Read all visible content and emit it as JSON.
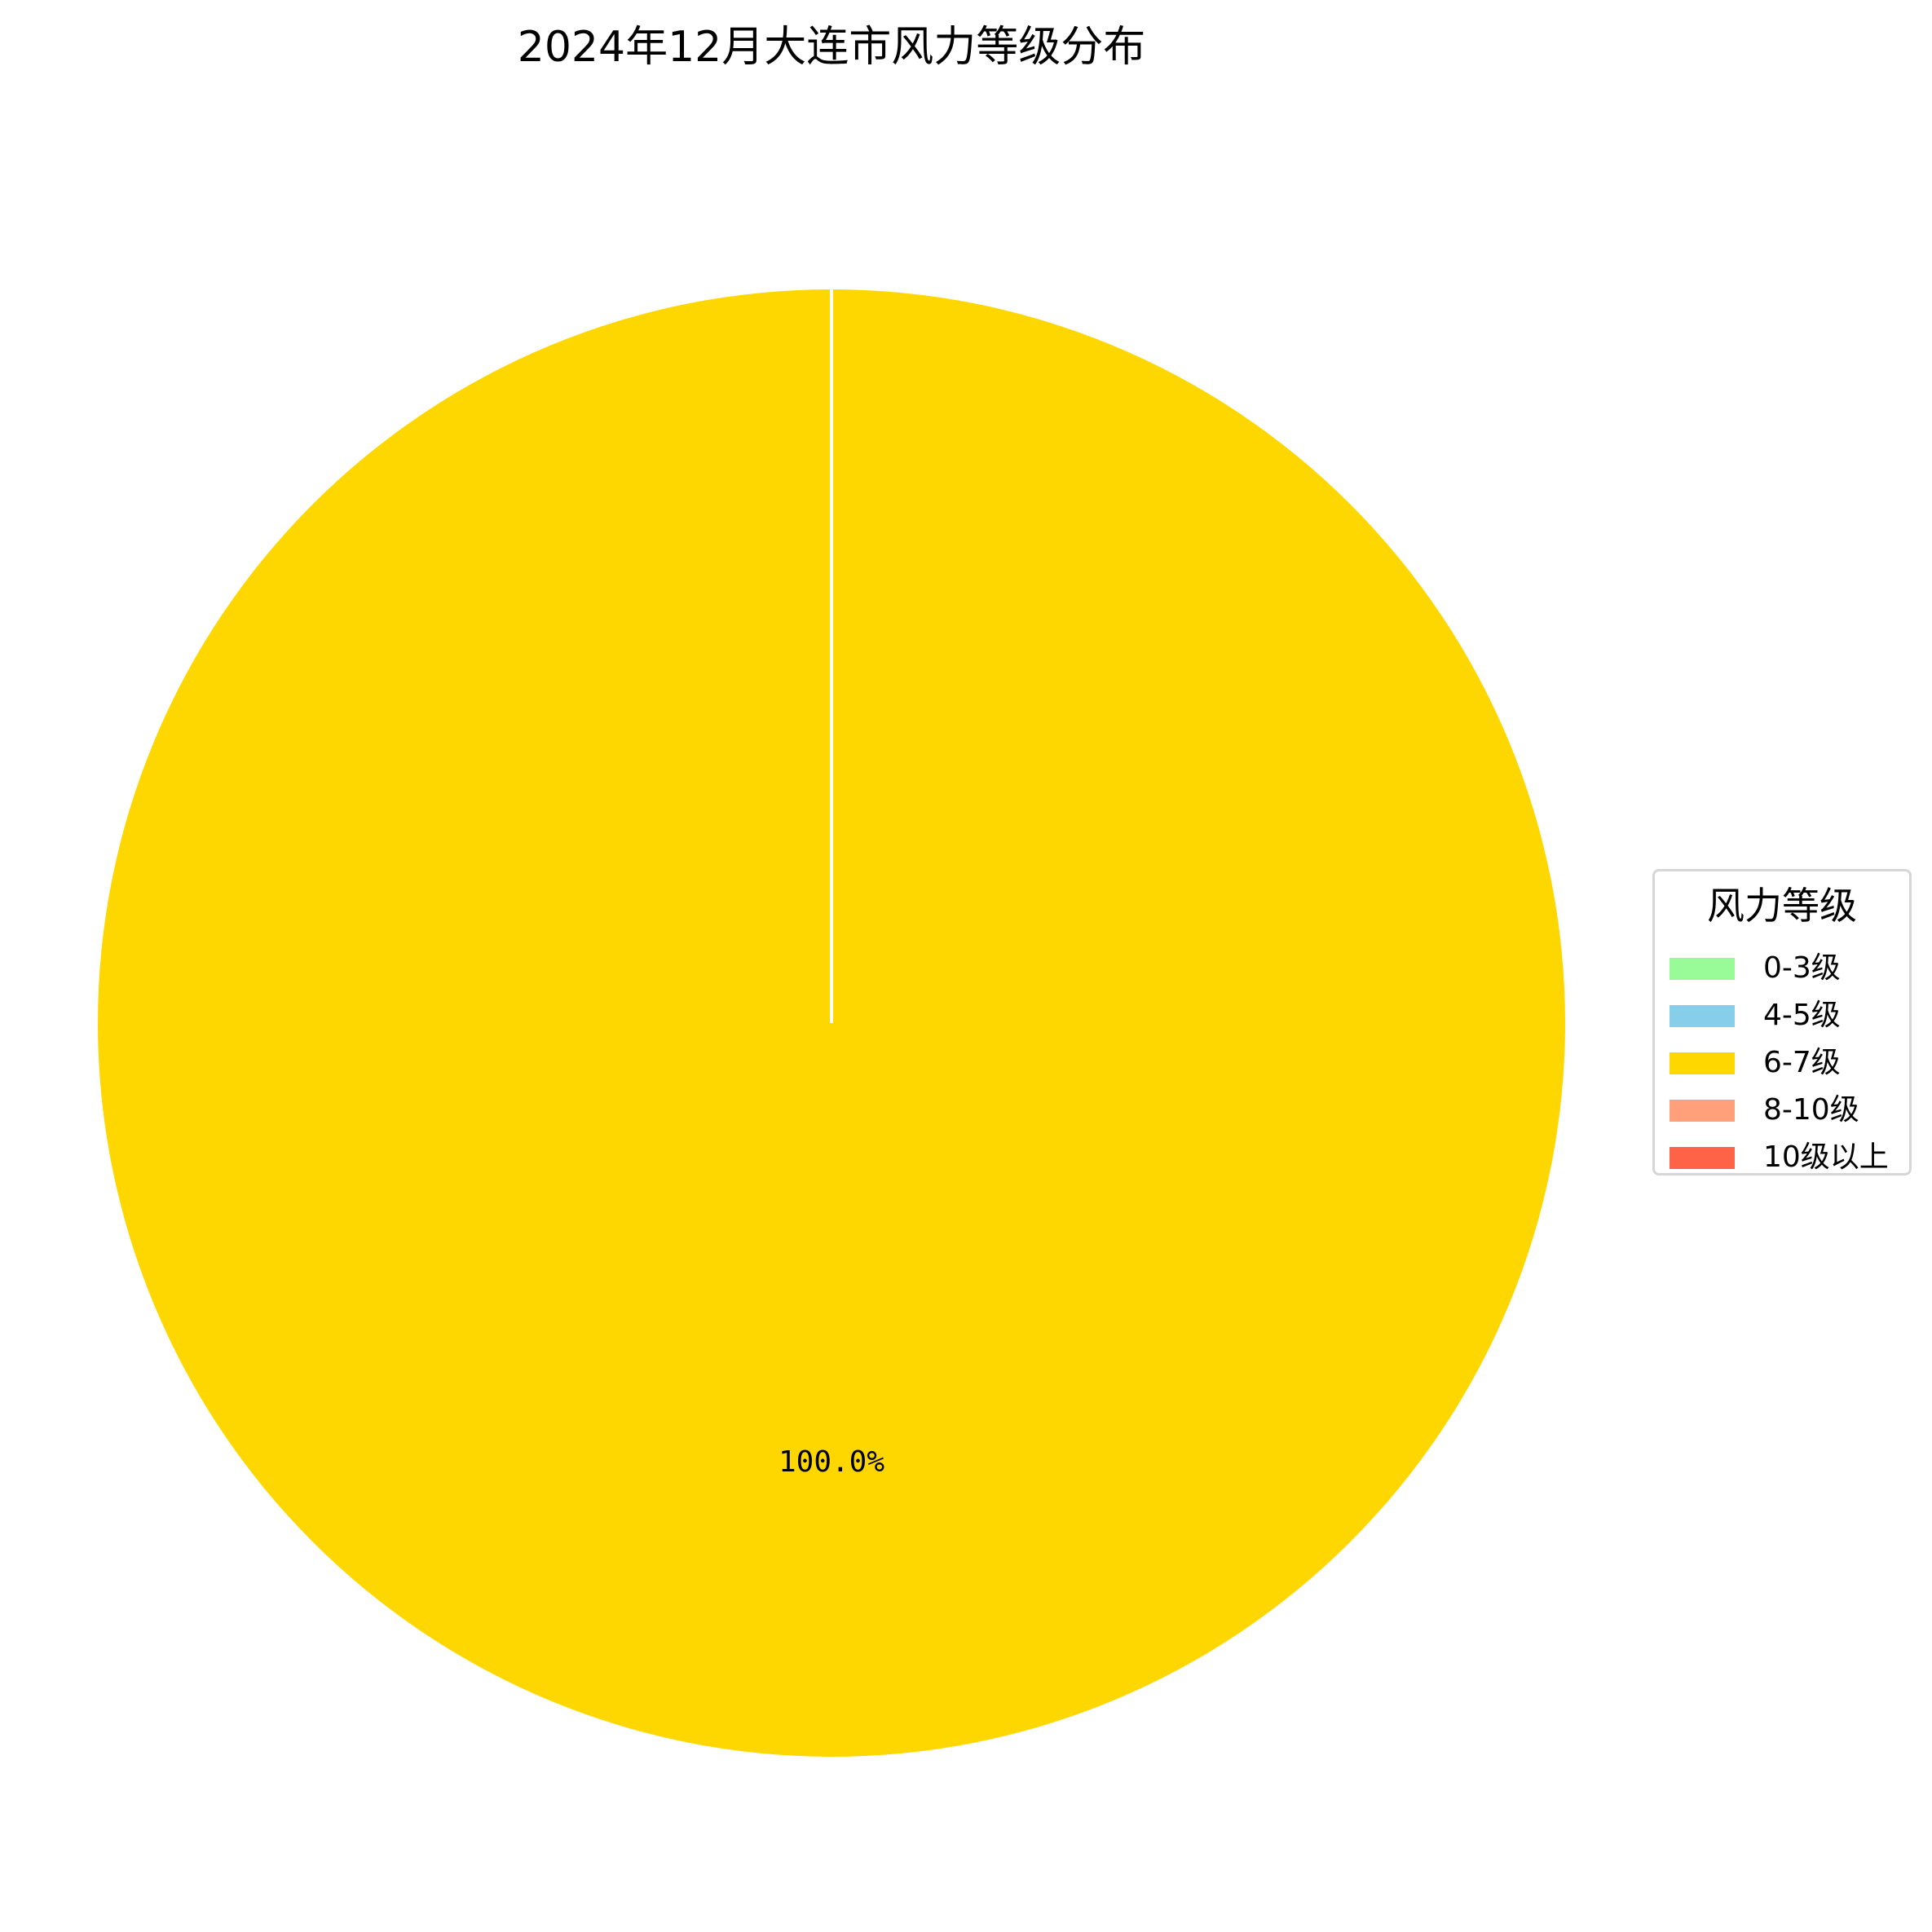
{
  "chart_data": {
    "type": "pie",
    "title": "2024年12月大连市风力等级分布",
    "categories": [
      "0-3级",
      "4-5级",
      "6-7级",
      "8-10级",
      "10级以上"
    ],
    "values": [
      0,
      0,
      100,
      0,
      0
    ],
    "colors": [
      "#98FB98",
      "#87CEEB",
      "#FFD700",
      "#FFA07A",
      "#FF6347"
    ],
    "slice_labels": [
      "",
      "",
      "100.0%",
      "",
      ""
    ],
    "legend_title": "风力等级",
    "legend_position": "right",
    "slice_edge_color": "#FFFFFF",
    "start_angle": 90
  }
}
